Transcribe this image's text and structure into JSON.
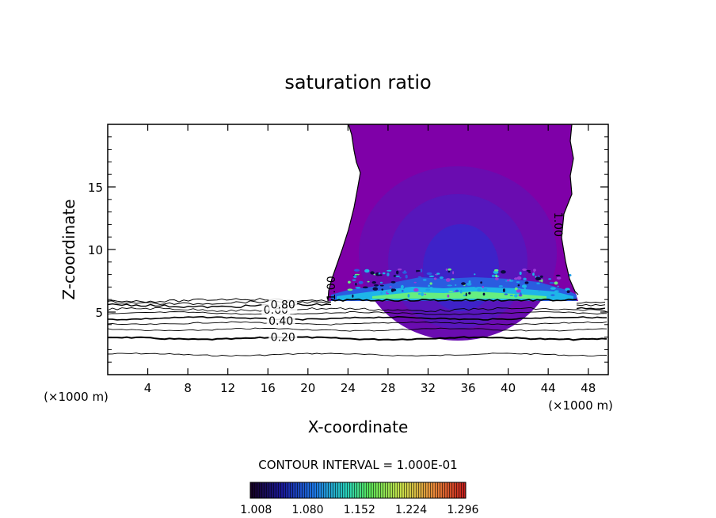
{
  "chart_data": {
    "type": "heatmap",
    "title": "saturation ratio",
    "xlabel": "X-coordinate",
    "ylabel": "Z-coordinate",
    "x_unit": "(×1000 m)",
    "y_unit": "(×1000 m)",
    "xlim": [
      0,
      50
    ],
    "ylim": [
      0,
      20
    ],
    "x_ticks": [
      4,
      8,
      12,
      16,
      20,
      24,
      28,
      32,
      36,
      40,
      44,
      48
    ],
    "y_ticks": [
      5,
      10,
      15
    ],
    "contour_interval_text": "CONTOUR INTERVAL = 1.000E-01",
    "colorbar": {
      "tick_labels": [
        "1.008",
        "1.080",
        "1.152",
        "1.224",
        "1.296"
      ],
      "range": [
        1.0,
        1.3
      ]
    },
    "contour_labels": [
      {
        "text": "0.20",
        "x": 17.5,
        "z": 3.0
      },
      {
        "text": "0.40",
        "x": 17.3,
        "z": 4.3
      },
      {
        "text": "0.60",
        "x": 16.8,
        "z": 5.2
      },
      {
        "text": "0.80",
        "x": 17.5,
        "z": 5.6
      },
      {
        "text": "1.00",
        "x": 22.3,
        "z": 6.9
      },
      {
        "text": "1.00",
        "x": 45.0,
        "z": 12.0
      }
    ]
  },
  "colors": {
    "plume": "#7f00a8",
    "mid": "#5c16b6",
    "core": "#3a24c8",
    "base_band": "#1e9fe8",
    "hot": "#62f078"
  }
}
